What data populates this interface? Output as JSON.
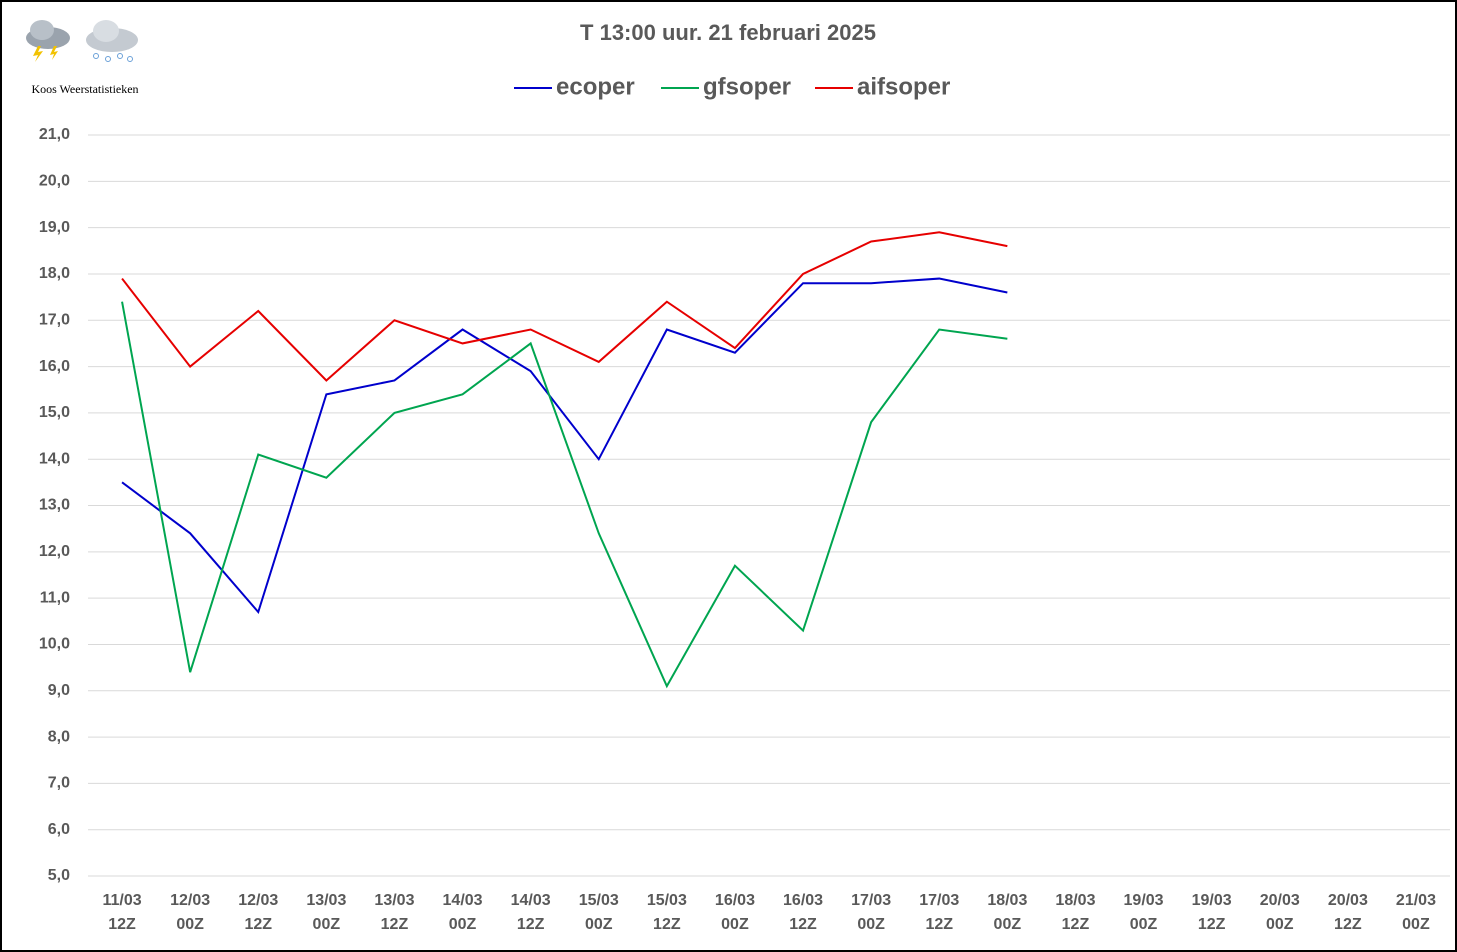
{
  "chart_data": {
    "type": "line",
    "title": "T 13:00 uur. 21 februari 2025",
    "watermark": "Koos Weerstatistieken",
    "categories": [
      [
        "11/03",
        "12Z"
      ],
      [
        "12/03",
        "00Z"
      ],
      [
        "12/03",
        "12Z"
      ],
      [
        "13/03",
        "00Z"
      ],
      [
        "13/03",
        "12Z"
      ],
      [
        "14/03",
        "00Z"
      ],
      [
        "14/03",
        "12Z"
      ],
      [
        "15/03",
        "00Z"
      ],
      [
        "15/03",
        "12Z"
      ],
      [
        "16/03",
        "00Z"
      ],
      [
        "16/03",
        "12Z"
      ],
      [
        "17/03",
        "00Z"
      ],
      [
        "17/03",
        "12Z"
      ],
      [
        "18/03",
        "00Z"
      ],
      [
        "18/03",
        "12Z"
      ],
      [
        "19/03",
        "00Z"
      ],
      [
        "19/03",
        "12Z"
      ],
      [
        "20/03",
        "00Z"
      ],
      [
        "20/03",
        "12Z"
      ],
      [
        "21/03",
        "00Z"
      ]
    ],
    "series": [
      {
        "name": "ecoper",
        "color": "#0000cc",
        "values": [
          13.5,
          12.4,
          10.7,
          15.4,
          15.7,
          16.8,
          15.9,
          14.0,
          16.8,
          16.3,
          17.8,
          17.8,
          17.9,
          17.6,
          null,
          null,
          null,
          null,
          null,
          null
        ]
      },
      {
        "name": "gfsoper",
        "color": "#00a550",
        "values": [
          17.4,
          9.4,
          14.1,
          13.6,
          15.0,
          15.4,
          16.5,
          12.4,
          9.1,
          11.7,
          10.3,
          14.8,
          16.8,
          16.6,
          null,
          null,
          null,
          null,
          null,
          null
        ]
      },
      {
        "name": "aifsoper",
        "color": "#e60000",
        "values": [
          17.9,
          16.0,
          17.2,
          15.7,
          17.0,
          16.5,
          16.8,
          16.1,
          17.4,
          16.4,
          18.0,
          18.7,
          18.9,
          18.6,
          null,
          null,
          null,
          null,
          null,
          null
        ]
      }
    ],
    "ylim": [
      5,
      21
    ],
    "yticks": [
      {
        "value": 5,
        "label": "5,0"
      },
      {
        "value": 6,
        "label": "6,0"
      },
      {
        "value": 7,
        "label": "7,0"
      },
      {
        "value": 8,
        "label": "8,0"
      },
      {
        "value": 9,
        "label": "9,0"
      },
      {
        "value": 10,
        "label": "10,0"
      },
      {
        "value": 11,
        "label": "11,0"
      },
      {
        "value": 12,
        "label": "12,0"
      },
      {
        "value": 13,
        "label": "13,0"
      },
      {
        "value": 14,
        "label": "14,0"
      },
      {
        "value": 15,
        "label": "15,0"
      },
      {
        "value": 16,
        "label": "16,0"
      },
      {
        "value": 17,
        "label": "17,0"
      },
      {
        "value": 18,
        "label": "18,0"
      },
      {
        "value": 19,
        "label": "19,0"
      },
      {
        "value": 20,
        "label": "20,0"
      },
      {
        "value": 21,
        "label": "21,0"
      }
    ],
    "grid": true,
    "legend": "top"
  }
}
